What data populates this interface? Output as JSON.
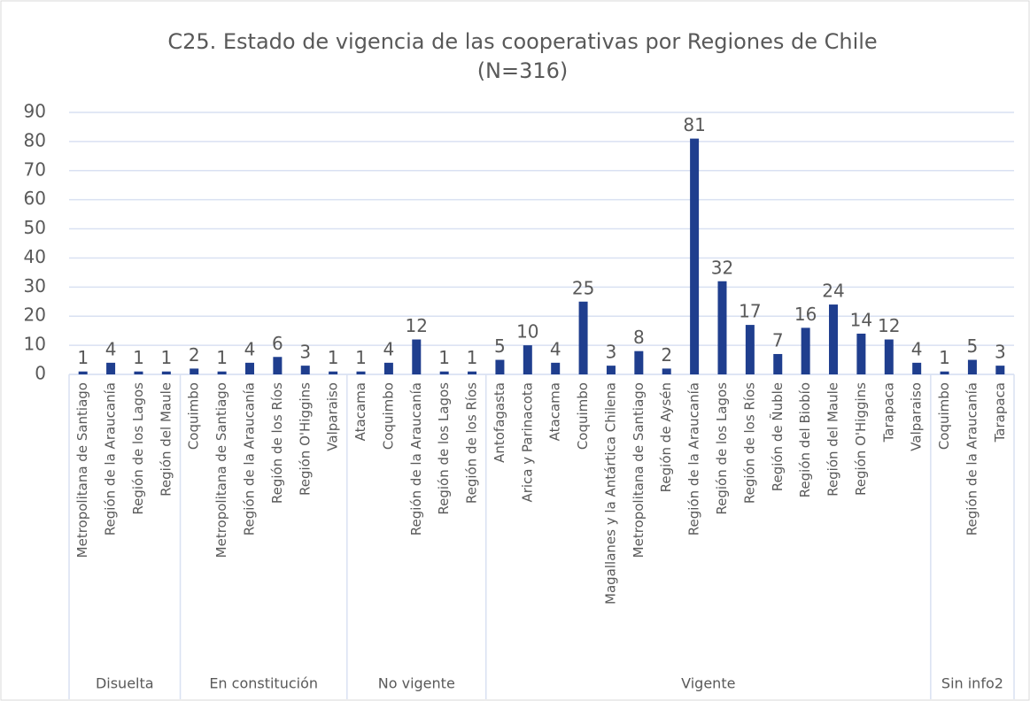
{
  "chart_data": {
    "type": "bar",
    "title": [
      "C25. Estado de vigencia de las cooperativas por Regiones de Chile",
      "(N=316)"
    ],
    "color": "#1f3e8e",
    "ylim": [
      0,
      90
    ],
    "yticks": [
      0,
      10,
      20,
      30,
      40,
      50,
      60,
      70,
      80,
      90
    ],
    "grid": true,
    "groups": [
      {
        "name": "Disuelta",
        "categories": [
          "Metropolitana de Santiago",
          "Región de la Araucanía",
          "Región de los Lagos",
          "Región del Maule"
        ],
        "values": [
          1,
          4,
          1,
          1
        ]
      },
      {
        "name": "En constitución",
        "categories": [
          "Coquimbo",
          "Metropolitana de Santiago",
          "Región de la Araucanía",
          "Región de los Ríos",
          "Región O'Higgins",
          "Valparaiso"
        ],
        "values": [
          2,
          1,
          4,
          6,
          3,
          1
        ]
      },
      {
        "name": "No vigente",
        "categories": [
          "Atacama",
          "Coquimbo",
          "Región de la Araucanía",
          "Región de los Lagos",
          "Región de los Ríos"
        ],
        "values": [
          1,
          4,
          12,
          1,
          1
        ]
      },
      {
        "name": "Vigente",
        "categories": [
          "Antofagasta",
          "Arica y Parinacota",
          "Atacama",
          "Coquimbo",
          "Magallanes y la Antártica Chilena",
          "Metropolitana de Santiago",
          "Región de Aysén",
          "Región de la Araucanía",
          "Región de los Lagos",
          "Región de los Ríos",
          "Región de Ñuble",
          "Región del Biobío",
          "Región del Maule",
          "Región O'Higgins",
          "Tarapaca",
          "Valparaiso"
        ],
        "values": [
          5,
          10,
          4,
          25,
          3,
          8,
          2,
          81,
          32,
          17,
          7,
          16,
          24,
          14,
          12,
          4
        ]
      },
      {
        "name": "Sin info2",
        "categories": [
          "Coquimbo",
          "Región de la Araucanía",
          "Tarapaca"
        ],
        "values": [
          1,
          5,
          3
        ]
      }
    ]
  }
}
